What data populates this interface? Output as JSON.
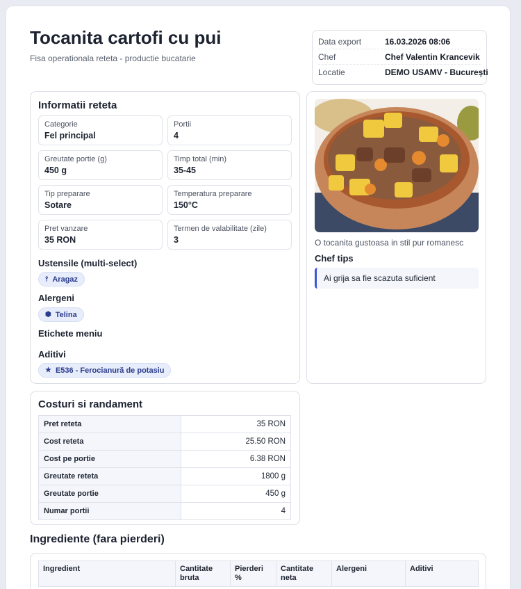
{
  "header": {
    "title": "Tocanita cartofi cu pui",
    "subtitle": "Fisa operationala reteta - productie bucatarie"
  },
  "meta": [
    {
      "label": "Data export",
      "value": "16.03.2026 08:06"
    },
    {
      "label": "Chef",
      "value": "Chef Valentin Krancevik"
    },
    {
      "label": "Locatie",
      "value": "DEMO USAMV - București"
    }
  ],
  "info": {
    "title": "Informatii reteta",
    "fields": [
      {
        "label": "Categorie",
        "value": "Fel principal"
      },
      {
        "label": "Portii",
        "value": "4"
      },
      {
        "label": "Greutate portie (g)",
        "value": "450 g"
      },
      {
        "label": "Timp total (min)",
        "value": "35-45"
      },
      {
        "label": "Tip preparare",
        "value": "Sotare"
      },
      {
        "label": "Temperatura preparare",
        "value": "150°C"
      },
      {
        "label": "Pret vanzare",
        "value": "35 RON"
      },
      {
        "label": "Termen de valabilitate (zile)",
        "value": "3"
      }
    ],
    "ustensile_label": "Ustensile (multi-select)",
    "ustensile": [
      {
        "icon": "utensil-icon",
        "text": "Aragaz"
      }
    ],
    "alergeni_label": "Alergeni",
    "alergeni": [
      {
        "icon": "hexagon-icon",
        "text": "Telina"
      }
    ],
    "etichete_label": "Etichete meniu",
    "aditivi_label": "Aditivi",
    "aditivi": [
      {
        "icon": "star-icon",
        "text": "E536 - Ferocianură de potasiu"
      }
    ]
  },
  "side": {
    "caption": "O tocanita gustoasa in stil pur romanesc",
    "tips_title": "Chef tips",
    "tip": "Ai grija sa fie scazuta suficient",
    "accent": "#3a56d6"
  },
  "costs": {
    "title": "Costuri si randament",
    "rows": [
      {
        "label": "Pret reteta",
        "value": "35 RON"
      },
      {
        "label": "Cost reteta",
        "value": "25.50 RON"
      },
      {
        "label": "Cost pe portie",
        "value": "6.38 RON"
      },
      {
        "label": "Greutate reteta",
        "value": "1800 g"
      },
      {
        "label": "Greutate portie",
        "value": "450 g"
      },
      {
        "label": "Numar portii",
        "value": "4"
      }
    ]
  },
  "ingredients": {
    "title": "Ingrediente (fara pierderi)",
    "columns": [
      "Ingredient",
      "Cantitate bruta",
      "Pierderi %",
      "Cantitate neta",
      "Alergeni",
      "Aditivi"
    ]
  }
}
